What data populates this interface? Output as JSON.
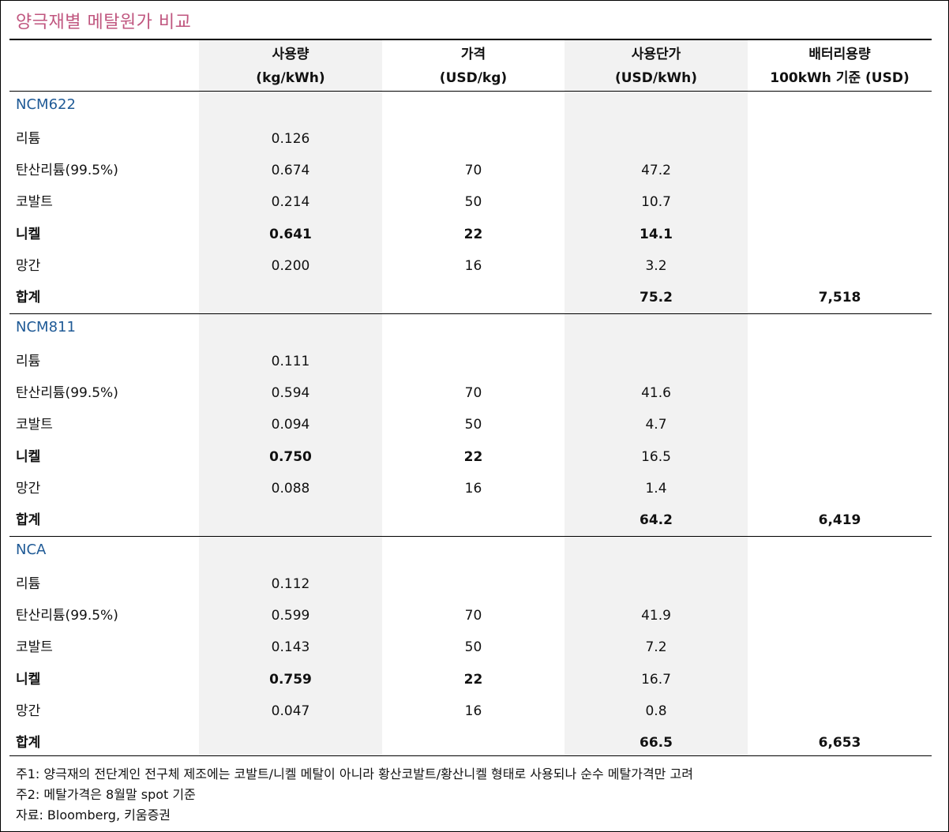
{
  "title": "양극재별 메탈원가 비교",
  "headers": [
    {
      "line1": "사용량",
      "line2": "(kg/kWh)"
    },
    {
      "line1": "가격",
      "line2": "(USD/kg)"
    },
    {
      "line1": "사용단가",
      "line2": "(USD/kWh)"
    },
    {
      "line1": "배터리용량",
      "line2": "100kWh 기준 (USD)"
    }
  ],
  "sections": [
    {
      "name": "NCM622",
      "rows": [
        {
          "label": "리튬",
          "usage": "0.126",
          "price": "",
          "unit": "",
          "total": "",
          "bold": false
        },
        {
          "label": "탄산리튬(99.5%)",
          "usage": "0.674",
          "price": "70",
          "unit": "47.2",
          "total": "",
          "bold": false
        },
        {
          "label": "코발트",
          "usage": "0.214",
          "price": "50",
          "unit": "10.7",
          "total": "",
          "bold": false
        },
        {
          "label": "니켈",
          "usage": "0.641",
          "price": "22",
          "unit": "14.1",
          "total": "",
          "bold": true,
          "bold_unit": true
        },
        {
          "label": "망간",
          "usage": "0.200",
          "price": "16",
          "unit": "3.2",
          "total": "",
          "bold": false
        },
        {
          "label": "합계",
          "usage": "",
          "price": "",
          "unit": "75.2",
          "total": "7,518",
          "bold": true,
          "bold_unit": true
        }
      ]
    },
    {
      "name": "NCM811",
      "rows": [
        {
          "label": "리튬",
          "usage": "0.111",
          "price": "",
          "unit": "",
          "total": "",
          "bold": false
        },
        {
          "label": "탄산리튬(99.5%)",
          "usage": "0.594",
          "price": "70",
          "unit": "41.6",
          "total": "",
          "bold": false
        },
        {
          "label": "코발트",
          "usage": "0.094",
          "price": "50",
          "unit": "4.7",
          "total": "",
          "bold": false
        },
        {
          "label": "니켈",
          "usage": "0.750",
          "price": "22",
          "unit": "16.5",
          "total": "",
          "bold": true,
          "bold_unit": false
        },
        {
          "label": "망간",
          "usage": "0.088",
          "price": "16",
          "unit": "1.4",
          "total": "",
          "bold": false
        },
        {
          "label": "합계",
          "usage": "",
          "price": "",
          "unit": "64.2",
          "total": "6,419",
          "bold": true,
          "bold_unit": true
        }
      ]
    },
    {
      "name": "NCA",
      "rows": [
        {
          "label": "리튬",
          "usage": "0.112",
          "price": "",
          "unit": "",
          "total": "",
          "bold": false
        },
        {
          "label": "탄산리튬(99.5%)",
          "usage": "0.599",
          "price": "70",
          "unit": "41.9",
          "total": "",
          "bold": false
        },
        {
          "label": "코발트",
          "usage": "0.143",
          "price": "50",
          "unit": "7.2",
          "total": "",
          "bold": false
        },
        {
          "label": "니켈",
          "usage": "0.759",
          "price": "22",
          "unit": "16.7",
          "total": "",
          "bold": true,
          "bold_unit": false
        },
        {
          "label": "망간",
          "usage": "0.047",
          "price": "16",
          "unit": "0.8",
          "total": "",
          "bold": false
        },
        {
          "label": "합계",
          "usage": "",
          "price": "",
          "unit": "66.5",
          "total": "6,653",
          "bold": true,
          "bold_unit": true
        }
      ]
    }
  ],
  "notes": [
    "주1: 양극재의 전단계인 전구체 제조에는 코발트/니켈 메탈이 아니라 황산코발트/황산니켈 형태로 사용되나 순수 메탈가격만 고려",
    "주2: 메탈가격은 8월말 spot 기준",
    "자료: Bloomberg, 키움증권"
  ],
  "colors": {
    "title": "#c0567f",
    "section": "#1f5a96",
    "shade": "#f2f2f2"
  }
}
